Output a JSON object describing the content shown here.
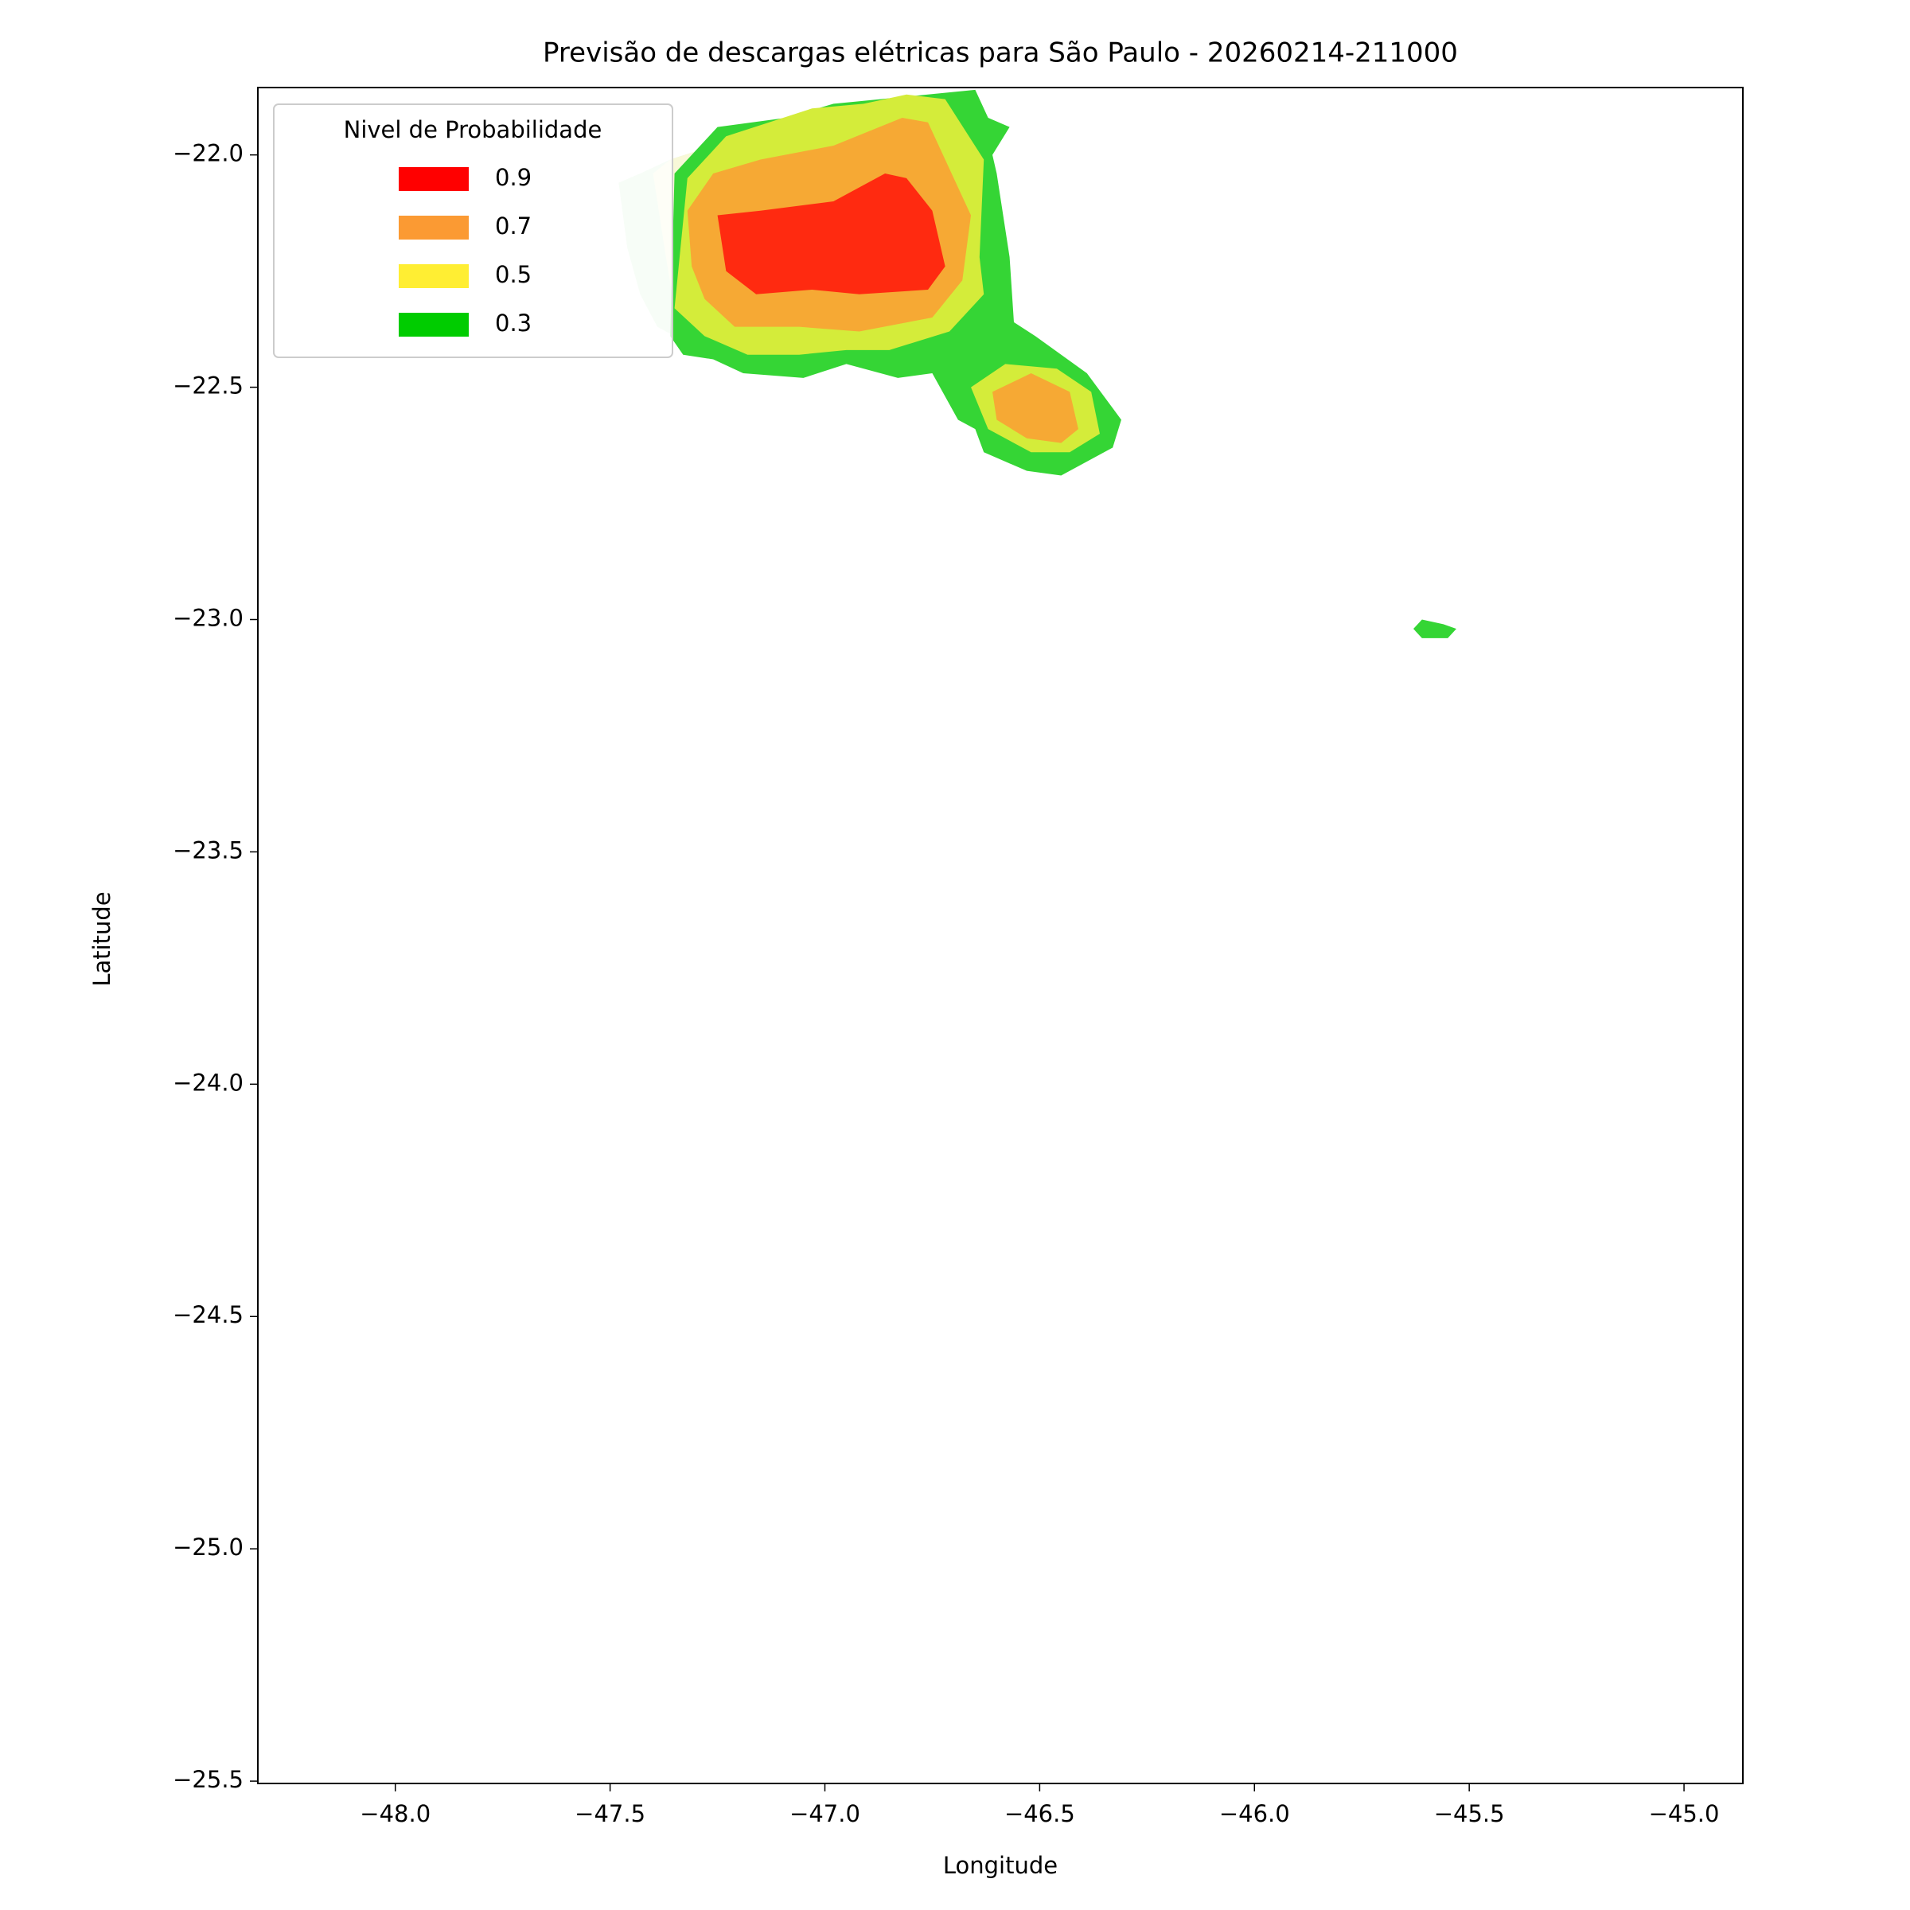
{
  "chart_data": {
    "type": "contour",
    "title": "Previsão de descargas elétricas para São Paulo - 20260214-211000",
    "xlabel": "Longitude",
    "ylabel": "Latitude",
    "xlim": [
      -48.32,
      -44.863
    ],
    "ylim": [
      -25.505,
      -21.855
    ],
    "xticks": [
      {
        "value": -48.0,
        "label": "−48.0"
      },
      {
        "value": -47.5,
        "label": "−47.5"
      },
      {
        "value": -47.0,
        "label": "−47.0"
      },
      {
        "value": -46.5,
        "label": "−46.5"
      },
      {
        "value": -46.0,
        "label": "−46.0"
      },
      {
        "value": -45.5,
        "label": "−45.5"
      },
      {
        "value": -45.0,
        "label": "−45.0"
      }
    ],
    "yticks": [
      {
        "value": -22.0,
        "label": "−22.0"
      },
      {
        "value": -22.5,
        "label": "−22.5"
      },
      {
        "value": -23.0,
        "label": "−23.0"
      },
      {
        "value": -23.5,
        "label": "−23.5"
      },
      {
        "value": -24.0,
        "label": "−24.0"
      },
      {
        "value": -24.5,
        "label": "−24.5"
      },
      {
        "value": -25.0,
        "label": "−25.0"
      },
      {
        "value": -25.5,
        "label": "−25.5"
      }
    ],
    "legend": {
      "title": "Nivel de Probabilidade",
      "position": "upper left",
      "series": [
        {
          "name": "0.9",
          "color": "#ff0000"
        },
        {
          "name": "0.7",
          "color": "#fb9a33"
        },
        {
          "name": "0.5",
          "color": "#ffee33"
        },
        {
          "name": "0.3",
          "color": "#00cc00"
        }
      ]
    },
    "regions": [
      {
        "level": 0.1,
        "color": "#d5f5d5",
        "points": [
          [
            -47.48,
            -22.06
          ],
          [
            -47.43,
            -22.04
          ],
          [
            -47.36,
            -22.01
          ],
          [
            -47.26,
            -21.98
          ],
          [
            -47.35,
            -22.39
          ],
          [
            -47.39,
            -22.37
          ],
          [
            -47.43,
            -22.3
          ],
          [
            -47.46,
            -22.2
          ]
        ]
      },
      {
        "level": 0.2,
        "color": "#f8f8d8",
        "points": [
          [
            -47.4,
            -22.04
          ],
          [
            -47.36,
            -22.01
          ],
          [
            -47.26,
            -21.98
          ],
          [
            -47.3,
            -22.25
          ],
          [
            -47.35,
            -22.33
          ],
          [
            -47.37,
            -22.22
          ]
        ]
      },
      {
        "level": 0.3,
        "color": "#35d535",
        "points": [
          [
            -47.36,
            -22.39
          ],
          [
            -47.35,
            -22.04
          ],
          [
            -47.25,
            -21.94
          ],
          [
            -47.09,
            -21.92
          ],
          [
            -46.98,
            -21.89
          ],
          [
            -46.65,
            -21.86
          ],
          [
            -46.62,
            -21.92
          ],
          [
            -46.57,
            -21.94
          ],
          [
            -46.61,
            -22.0
          ],
          [
            -46.6,
            -22.04
          ],
          [
            -46.57,
            -22.22
          ],
          [
            -46.56,
            -22.36
          ],
          [
            -46.51,
            -22.39
          ],
          [
            -46.39,
            -22.47
          ],
          [
            -46.31,
            -22.57
          ],
          [
            -46.33,
            -22.63
          ],
          [
            -46.45,
            -22.69
          ],
          [
            -46.53,
            -22.68
          ],
          [
            -46.63,
            -22.64
          ],
          [
            -46.65,
            -22.59
          ],
          [
            -46.69,
            -22.57
          ],
          [
            -46.75,
            -22.47
          ],
          [
            -46.83,
            -22.48
          ],
          [
            -46.95,
            -22.45
          ],
          [
            -47.05,
            -22.48
          ],
          [
            -47.19,
            -22.47
          ],
          [
            -47.26,
            -22.44
          ],
          [
            -47.33,
            -22.43
          ]
        ]
      },
      {
        "level": 0.3,
        "color": "#35d535",
        "points": [
          [
            -45.63,
            -23.02
          ],
          [
            -45.61,
            -23.0
          ],
          [
            -45.56,
            -23.01
          ],
          [
            -45.53,
            -23.02
          ],
          [
            -45.55,
            -23.04
          ],
          [
            -45.61,
            -23.04
          ]
        ]
      },
      {
        "level": 0.5,
        "color": "#d4ec3a",
        "points": [
          [
            -47.32,
            -22.05
          ],
          [
            -47.23,
            -21.96
          ],
          [
            -47.03,
            -21.9
          ],
          [
            -46.91,
            -21.89
          ],
          [
            -46.81,
            -21.87
          ],
          [
            -46.72,
            -21.88
          ],
          [
            -46.63,
            -22.01
          ],
          [
            -46.64,
            -22.22
          ],
          [
            -46.63,
            -22.3
          ],
          [
            -46.71,
            -22.38
          ],
          [
            -46.85,
            -22.42
          ],
          [
            -46.95,
            -22.42
          ],
          [
            -47.06,
            -22.43
          ],
          [
            -47.18,
            -22.43
          ],
          [
            -47.28,
            -22.39
          ],
          [
            -47.35,
            -22.33
          ]
        ]
      },
      {
        "level": 0.5,
        "color": "#d4ec3a",
        "points": [
          [
            -46.66,
            -22.5
          ],
          [
            -46.58,
            -22.45
          ],
          [
            -46.46,
            -22.46
          ],
          [
            -46.38,
            -22.51
          ],
          [
            -46.36,
            -22.6
          ],
          [
            -46.43,
            -22.64
          ],
          [
            -46.52,
            -22.64
          ],
          [
            -46.62,
            -22.59
          ]
        ]
      },
      {
        "level": 0.7,
        "color": "#f6a934",
        "points": [
          [
            -47.32,
            -22.12
          ],
          [
            -47.26,
            -22.04
          ],
          [
            -47.15,
            -22.01
          ],
          [
            -46.98,
            -21.98
          ],
          [
            -46.82,
            -21.92
          ],
          [
            -46.76,
            -21.93
          ],
          [
            -46.72,
            -22.01
          ],
          [
            -46.66,
            -22.13
          ],
          [
            -46.68,
            -22.27
          ],
          [
            -46.75,
            -22.35
          ],
          [
            -46.92,
            -22.38
          ],
          [
            -47.06,
            -22.37
          ],
          [
            -47.21,
            -22.37
          ],
          [
            -47.28,
            -22.31
          ],
          [
            -47.31,
            -22.24
          ]
        ]
      },
      {
        "level": 0.7,
        "color": "#f6a934",
        "points": [
          [
            -46.61,
            -22.51
          ],
          [
            -46.52,
            -22.47
          ],
          [
            -46.43,
            -22.51
          ],
          [
            -46.41,
            -22.59
          ],
          [
            -46.45,
            -22.62
          ],
          [
            -46.53,
            -22.61
          ],
          [
            -46.6,
            -22.57
          ]
        ]
      },
      {
        "level": 0.9,
        "color": "#ff2a10",
        "points": [
          [
            -47.25,
            -22.13
          ],
          [
            -47.15,
            -22.12
          ],
          [
            -46.98,
            -22.1
          ],
          [
            -46.86,
            -22.04
          ],
          [
            -46.81,
            -22.05
          ],
          [
            -46.75,
            -22.12
          ],
          [
            -46.72,
            -22.24
          ],
          [
            -46.76,
            -22.29
          ],
          [
            -46.92,
            -22.3
          ],
          [
            -47.03,
            -22.29
          ],
          [
            -47.16,
            -22.3
          ],
          [
            -47.23,
            -22.25
          ]
        ]
      }
    ]
  }
}
